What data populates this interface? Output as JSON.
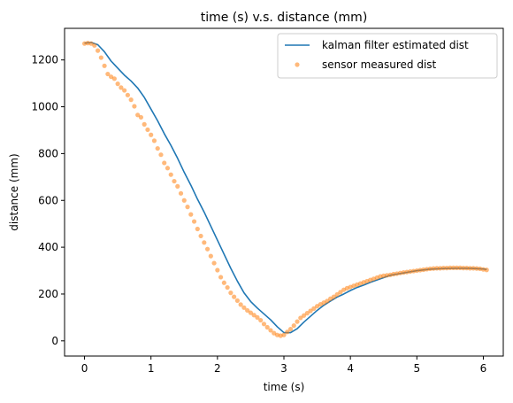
{
  "chart_data": {
    "type": "line",
    "title": "time (s) v.s. distance (mm)",
    "xlabel": "time (s)",
    "ylabel": "distance (mm)",
    "xlim": [
      -0.3,
      6.3
    ],
    "ylim": [
      -65,
      1335
    ],
    "xticks": [
      0,
      1,
      2,
      3,
      4,
      5,
      6
    ],
    "yticks": [
      0,
      200,
      400,
      600,
      800,
      1000,
      1200
    ],
    "grid": false,
    "legend_position": "top-right",
    "series": [
      {
        "name": "kalman filter estimated dist",
        "kind": "line",
        "color": "#1f77b4",
        "x": [
          0,
          0.1,
          0.2,
          0.3,
          0.4,
          0.5,
          0.6,
          0.7,
          0.8,
          0.9,
          1.0,
          1.1,
          1.2,
          1.3,
          1.4,
          1.5,
          1.6,
          1.7,
          1.8,
          1.9,
          2.0,
          2.1,
          2.2,
          2.3,
          2.4,
          2.5,
          2.6,
          2.7,
          2.8,
          2.9,
          3.0,
          3.1,
          3.2,
          3.3,
          3.4,
          3.5,
          3.6,
          3.7,
          3.8,
          3.9,
          4.0,
          4.1,
          4.2,
          4.3,
          4.4,
          4.5,
          4.6,
          4.7,
          4.8,
          4.9,
          5.0,
          5.2,
          5.4,
          5.6,
          5.8,
          6.0,
          6.05
        ],
        "y": [
          1272,
          1275,
          1265,
          1235,
          1195,
          1165,
          1135,
          1110,
          1080,
          1040,
          990,
          940,
          885,
          835,
          780,
          720,
          665,
          605,
          550,
          490,
          430,
          370,
          310,
          255,
          205,
          168,
          140,
          115,
          90,
          60,
          35,
          35,
          52,
          80,
          105,
          130,
          152,
          170,
          187,
          200,
          215,
          228,
          238,
          250,
          260,
          270,
          280,
          285,
          290,
          295,
          300,
          306,
          309,
          310,
          310,
          307,
          305
        ]
      },
      {
        "name": "sensor measured dist",
        "kind": "scatter",
        "color": "#ff7f0e",
        "x": [
          0.0,
          0.05,
          0.1,
          0.15,
          0.2,
          0.25,
          0.3,
          0.35,
          0.4,
          0.45,
          0.5,
          0.55,
          0.6,
          0.65,
          0.7,
          0.75,
          0.8,
          0.85,
          0.9,
          0.95,
          1.0,
          1.05,
          1.1,
          1.15,
          1.2,
          1.25,
          1.3,
          1.35,
          1.4,
          1.45,
          1.5,
          1.55,
          1.6,
          1.65,
          1.7,
          1.75,
          1.8,
          1.85,
          1.9,
          1.95,
          2.0,
          2.05,
          2.1,
          2.15,
          2.2,
          2.25,
          2.3,
          2.35,
          2.4,
          2.45,
          2.5,
          2.55,
          2.6,
          2.65,
          2.7,
          2.75,
          2.8,
          2.85,
          2.9,
          2.95,
          3.0,
          3.05,
          3.1,
          3.15,
          3.2,
          3.25,
          3.3,
          3.35,
          3.4,
          3.45,
          3.5,
          3.55,
          3.6,
          3.65,
          3.7,
          3.75,
          3.8,
          3.85,
          3.9,
          3.95,
          4.0,
          4.05,
          4.1,
          4.15,
          4.2,
          4.25,
          4.3,
          4.35,
          4.4,
          4.45,
          4.5,
          4.55,
          4.6,
          4.65,
          4.7,
          4.75,
          4.8,
          4.85,
          4.9,
          4.95,
          5.0,
          5.05,
          5.1,
          5.15,
          5.2,
          5.25,
          5.3,
          5.35,
          5.4,
          5.45,
          5.5,
          5.55,
          5.6,
          5.65,
          5.7,
          5.75,
          5.8,
          5.85,
          5.9,
          5.95,
          6.0,
          6.05
        ],
        "y": [
          1270,
          1272,
          1270,
          1262,
          1240,
          1210,
          1175,
          1140,
          1128,
          1120,
          1098,
          1082,
          1070,
          1050,
          1030,
          1002,
          965,
          955,
          925,
          902,
          880,
          855,
          822,
          795,
          760,
          738,
          710,
          682,
          660,
          630,
          600,
          572,
          540,
          510,
          478,
          448,
          420,
          392,
          362,
          332,
          302,
          272,
          248,
          228,
          205,
          188,
          172,
          155,
          142,
          130,
          120,
          110,
          100,
          88,
          72,
          58,
          45,
          33,
          25,
          22,
          25,
          38,
          50,
          65,
          82,
          98,
          108,
          118,
          128,
          138,
          148,
          156,
          163,
          170,
          180,
          188,
          198,
          208,
          218,
          225,
          230,
          235,
          240,
          245,
          250,
          255,
          260,
          265,
          270,
          275,
          278,
          280,
          282,
          285,
          287,
          290,
          292,
          294,
          296,
          298,
          300,
          302,
          304,
          306,
          308,
          309,
          310,
          310,
          311,
          311,
          312,
          312,
          312,
          312,
          311,
          311,
          310,
          310,
          309,
          308,
          305,
          303
        ]
      }
    ]
  }
}
